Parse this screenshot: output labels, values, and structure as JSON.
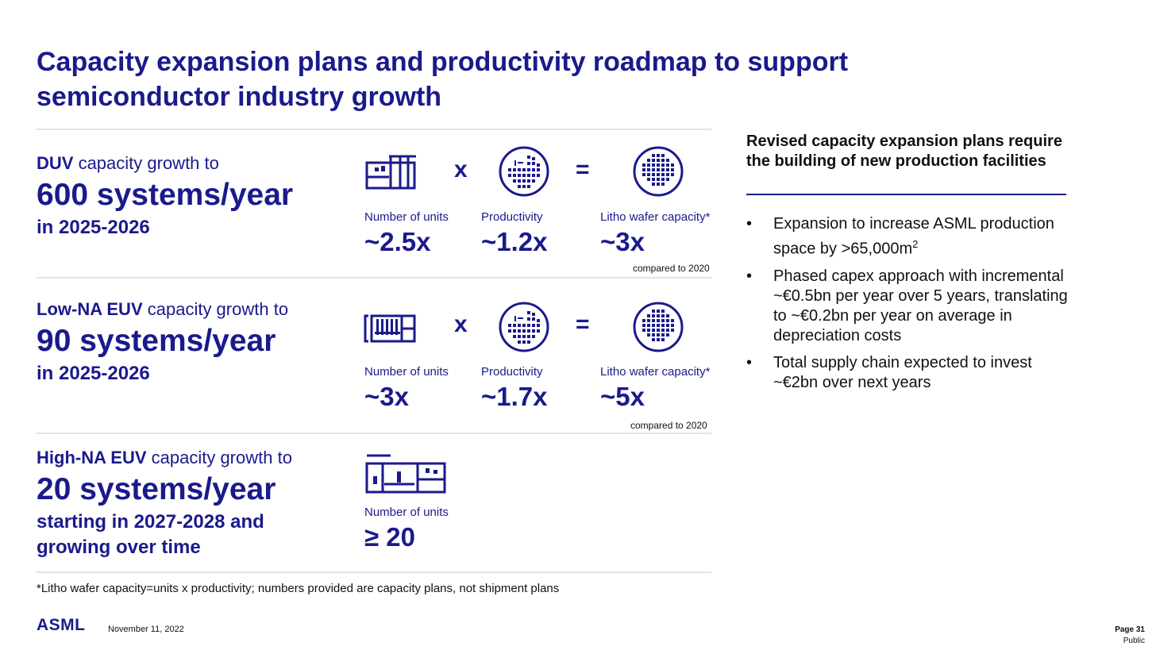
{
  "title": "Capacity expansion plans and productivity roadmap to support semiconductor industry growth",
  "sections": [
    {
      "head_bold": "DUV",
      "head_rest": " capacity growth to",
      "big": "600 systems/year",
      "sub": "in 2025-2026",
      "units_label": "Number of units",
      "units_value": "~2.5x",
      "op1": "x",
      "prod_label": "Productivity",
      "prod_value": "~1.2x",
      "op2": "=",
      "cap_label": "Litho wafer capacity*",
      "cap_value": "~3x",
      "compared": "compared to 2020"
    },
    {
      "head_bold": "Low-NA EUV",
      "head_rest": " capacity growth to",
      "big": "90 systems/year",
      "sub": "in 2025-2026",
      "units_label": "Number of units",
      "units_value": "~3x",
      "op1": "x",
      "prod_label": "Productivity",
      "prod_value": "~1.7x",
      "op2": "=",
      "cap_label": "Litho wafer capacity*",
      "cap_value": "~5x",
      "compared": "compared to 2020"
    },
    {
      "head_bold": "High-NA EUV",
      "head_rest": " capacity growth to",
      "big": "20 systems/year",
      "sub": "starting in 2027-2028 and growing over time",
      "units_label": "Number of units",
      "units_value": "≥ 20"
    }
  ],
  "right": {
    "heading": "Revised capacity expansion plans require the building of new production facilities",
    "bullet_mark": "•",
    "bullets": [
      "Expansion to increase ASML production space by >65,000m",
      "Phased capex approach with incremental ~€0.5bn per year over 5 years, translating to ~€0.2bn per year on average in depreciation costs",
      "Total supply chain expected to invest ~€2bn over next years"
    ],
    "superscript": "2"
  },
  "footnote": "*Litho wafer capacity=units x productivity; numbers provided are capacity plans, not shipment plans",
  "footer": {
    "logo": "ASML",
    "date": "November 11, 2022",
    "page": "Page 31",
    "classification": "Public"
  },
  "colors": {
    "brand_navy": "#1a1a8c",
    "divider": "#e3e3e3"
  },
  "icons": [
    "factory-icon",
    "wafer-icon",
    "wafer-full-icon",
    "euv-factory-icon",
    "highna-factory-icon"
  ]
}
